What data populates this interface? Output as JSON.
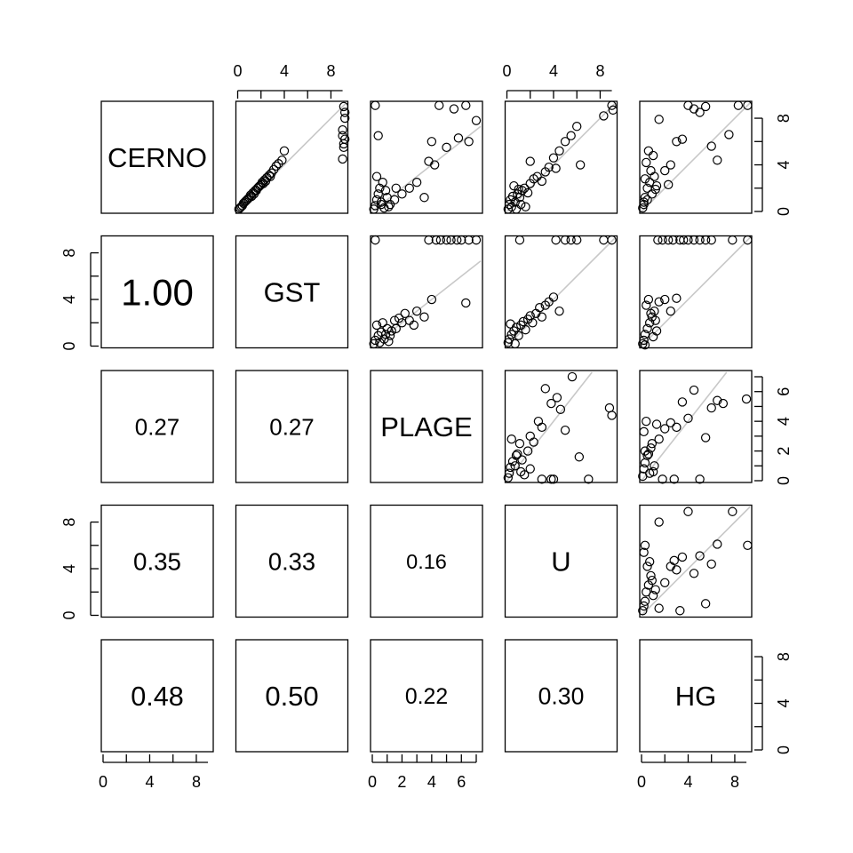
{
  "chart_data": {
    "type": "scatter",
    "layout": "pairs-matrix",
    "variables": [
      "CERNO",
      "GST",
      "PLAGE",
      "U",
      "HG"
    ],
    "ranges": {
      "CERNO": [
        0,
        9.3
      ],
      "GST": [
        0,
        9.3
      ],
      "PLAGE": [
        0,
        7.3
      ],
      "U": [
        0,
        9.3
      ],
      "HG": [
        0,
        9.3
      ]
    },
    "axis_ticks": {
      "CERNO": [
        "0",
        "4",
        "8"
      ],
      "GST": [
        "0",
        "4",
        "8"
      ],
      "PLAGE": [
        "0",
        "2",
        "4",
        "6"
      ],
      "U": [
        "0",
        "4",
        "8"
      ],
      "HG": [
        "0",
        "4",
        "8"
      ]
    },
    "lower_panel_correlations": [
      {
        "row": "GST",
        "col": "CERNO",
        "value": "1.00"
      },
      {
        "row": "PLAGE",
        "col": "CERNO",
        "value": "0.27"
      },
      {
        "row": "PLAGE",
        "col": "GST",
        "value": "0.27"
      },
      {
        "row": "U",
        "col": "CERNO",
        "value": "0.35"
      },
      {
        "row": "U",
        "col": "GST",
        "value": "0.33"
      },
      {
        "row": "U",
        "col": "PLAGE",
        "value": "0.16"
      },
      {
        "row": "HG",
        "col": "CERNO",
        "value": "0.48"
      },
      {
        "row": "HG",
        "col": "GST",
        "value": "0.50"
      },
      {
        "row": "HG",
        "col": "PLAGE",
        "value": "0.22"
      },
      {
        "row": "HG",
        "col": "U",
        "value": "0.30"
      }
    ],
    "upper_panel_points": {
      "CERNO|GST": {
        "x": [
          0.1,
          0.3,
          0.5,
          0.7,
          0.9,
          1.1,
          1.3,
          1.5,
          1.7,
          1.9,
          2.1,
          2.3,
          2.5,
          2.7,
          2.9,
          3.1,
          3.3,
          3.5,
          3.8,
          4.0,
          0.4,
          0.8,
          1.2,
          1.6,
          2.0,
          2.4,
          2.8,
          0.2,
          0.6,
          1.0,
          1.4,
          1.8,
          2.2,
          9.0,
          9.1,
          9.2,
          9.0,
          9.2,
          9.1,
          9.0,
          9.2,
          9.1
        ],
        "y": [
          0.2,
          0.4,
          0.7,
          0.9,
          1.1,
          1.4,
          1.6,
          1.8,
          2.0,
          2.2,
          2.5,
          2.7,
          2.9,
          3.1,
          3.3,
          3.6,
          3.9,
          4.1,
          4.4,
          5.2,
          0.5,
          1.0,
          1.3,
          1.8,
          2.3,
          2.6,
          3.0,
          0.3,
          0.8,
          1.2,
          1.5,
          2.1,
          2.4,
          4.5,
          5.8,
          6.2,
          7.0,
          8.5,
          9.0,
          6.5,
          8.0,
          5.5
        ]
      },
      "CERNO|PLAGE": {
        "x": [
          0.1,
          0.2,
          0.3,
          0.4,
          0.6,
          0.8,
          1.0,
          1.2,
          0.5,
          0.7,
          0.9,
          1.5,
          2.0,
          2.5,
          3.0,
          3.5,
          0.3,
          0.6,
          1.1,
          1.6,
          0.2,
          0.4,
          4.0,
          5.0,
          5.5,
          6.3,
          7.0,
          4.5,
          5.8,
          6.5,
          3.8,
          4.2
        ],
        "y": [
          0.2,
          0.5,
          1.0,
          1.5,
          0.8,
          0.3,
          1.2,
          0.6,
          2.0,
          2.5,
          1.8,
          1.0,
          1.5,
          2.0,
          2.5,
          1.2,
          3.0,
          0.6,
          0.4,
          2.0,
          9.1,
          6.5,
          6.0,
          5.5,
          8.8,
          9.1,
          7.8,
          9.1,
          6.3,
          6.0,
          4.3,
          4.0
        ]
      },
      "CERNO|U": {
        "x": [
          0.1,
          0.2,
          0.3,
          0.5,
          0.7,
          0.9,
          1.1,
          1.3,
          1.5,
          1.8,
          2.0,
          2.3,
          2.6,
          3.0,
          3.3,
          3.6,
          0.4,
          0.8,
          1.2,
          1.6,
          0.6,
          1.0,
          4.0,
          4.5,
          5.0,
          5.5,
          6.0,
          8.3,
          9.0,
          9.1,
          2.0,
          4.2,
          6.3
        ],
        "y": [
          0.2,
          0.6,
          1.0,
          1.3,
          0.8,
          1.5,
          1.2,
          1.8,
          2.0,
          1.6,
          2.4,
          2.8,
          3.0,
          2.6,
          3.4,
          3.8,
          0.4,
          0.2,
          0.6,
          0.4,
          2.2,
          1.9,
          4.6,
          5.2,
          6.0,
          6.5,
          7.3,
          8.2,
          9.1,
          8.7,
          4.3,
          3.7,
          4.0
        ]
      },
      "CERNO|HG": {
        "x": [
          0.1,
          0.2,
          0.3,
          0.5,
          0.7,
          0.9,
          1.1,
          1.3,
          0.4,
          0.6,
          0.8,
          1.0,
          0.2,
          0.5,
          1.5,
          2.0,
          2.5,
          3.0,
          3.5,
          4.0,
          4.5,
          5.0,
          5.5,
          6.0,
          6.5,
          7.5,
          8.3,
          9.1,
          0.3,
          1.2,
          2.3
        ],
        "y": [
          0.3,
          0.8,
          1.2,
          2.0,
          2.5,
          1.5,
          3.0,
          2.2,
          4.2,
          5.2,
          3.5,
          4.8,
          0.6,
          1.0,
          7.9,
          3.5,
          4.0,
          6.0,
          6.2,
          9.1,
          8.8,
          8.5,
          9.0,
          5.6,
          4.4,
          6.6,
          9.1,
          9.1,
          2.8,
          1.9,
          2.3
        ]
      },
      "GST|PLAGE": {
        "x": [
          0.1,
          0.2,
          0.4,
          0.6,
          0.8,
          1.0,
          1.2,
          1.5,
          0.3,
          0.5,
          0.7,
          0.9,
          1.1,
          1.3,
          1.8,
          2.0,
          2.5,
          3.0,
          3.5,
          4.0,
          6.3,
          2.2,
          1.6,
          2.8,
          0.2,
          3.8,
          4.3,
          4.6,
          5.0,
          5.3,
          5.7,
          6.0,
          6.5,
          7.0
        ],
        "y": [
          0.2,
          0.5,
          0.9,
          1.2,
          0.6,
          1.5,
          0.9,
          2.2,
          1.8,
          0.3,
          2.0,
          1.0,
          0.4,
          1.3,
          2.4,
          2.0,
          2.2,
          3.0,
          2.5,
          4.0,
          3.7,
          2.8,
          1.5,
          1.8,
          9.1,
          9.1,
          9.1,
          9.1,
          9.1,
          9.1,
          9.1,
          9.1,
          9.1,
          9.1
        ]
      },
      "GST|U": {
        "x": [
          0.1,
          0.2,
          0.4,
          0.6,
          0.8,
          1.0,
          1.2,
          1.4,
          1.6,
          1.8,
          2.0,
          2.2,
          2.5,
          2.8,
          3.0,
          3.3,
          3.6,
          4.0,
          4.5,
          5.0,
          5.5,
          6.0,
          8.3,
          9.0,
          1.1,
          4.2,
          0.3,
          0.7
        ],
        "y": [
          0.3,
          0.6,
          1.0,
          1.3,
          1.6,
          0.9,
          1.8,
          2.1,
          1.4,
          2.3,
          2.6,
          2.0,
          2.8,
          3.3,
          2.5,
          3.5,
          3.8,
          4.2,
          3.0,
          9.1,
          9.1,
          9.1,
          9.1,
          9.1,
          9.1,
          9.1,
          1.9,
          0.2
        ]
      },
      "GST|HG": {
        "x": [
          0.1,
          0.2,
          0.3,
          0.5,
          0.7,
          0.9,
          1.1,
          1.3,
          0.4,
          0.6,
          0.8,
          1.0,
          1.2,
          1.5,
          2.0,
          2.5,
          3.0,
          1.4,
          1.8,
          2.3,
          2.7,
          3.3,
          3.6,
          4.0,
          4.5,
          5.0,
          5.5,
          6.0,
          7.8,
          9.1,
          0.3
        ],
        "y": [
          0.2,
          0.5,
          1.0,
          1.5,
          2.0,
          2.5,
          3.0,
          1.3,
          3.5,
          4.0,
          2.8,
          0.8,
          2.2,
          3.8,
          4.0,
          3.0,
          4.1,
          9.1,
          9.1,
          9.1,
          9.1,
          9.1,
          9.1,
          9.1,
          9.1,
          9.1,
          9.1,
          9.1,
          9.1,
          9.1,
          0.1
        ]
      },
      "PLAGE|U": {
        "x": [
          0.1,
          0.2,
          0.3,
          0.5,
          0.7,
          0.9,
          1.1,
          1.3,
          1.5,
          1.8,
          2.0,
          2.3,
          2.7,
          3.0,
          3.3,
          3.8,
          4.3,
          4.6,
          5.0,
          5.6,
          6.2,
          7.0,
          8.8,
          9.0,
          2.0,
          3.0,
          3.8,
          4.0,
          0.4,
          1.2,
          0.8
        ],
        "y": [
          0.2,
          0.5,
          0.9,
          1.3,
          1.0,
          1.8,
          2.5,
          1.4,
          0.4,
          2.0,
          3.0,
          2.6,
          4.0,
          3.6,
          6.2,
          5.2,
          5.6,
          4.8,
          3.4,
          7.0,
          1.6,
          0.1,
          4.9,
          4.4,
          0.8,
          0.1,
          0.1,
          0.1,
          2.8,
          0.6,
          1.7
        ]
      },
      "PLAGE|HG": {
        "x": [
          0.1,
          0.2,
          0.3,
          0.5,
          0.7,
          0.9,
          1.1,
          1.3,
          0.4,
          0.6,
          0.8,
          1.0,
          1.5,
          2.0,
          2.5,
          3.0,
          3.5,
          4.0,
          4.5,
          5.0,
          5.5,
          6.0,
          6.5,
          7.0,
          9.0,
          2.8,
          1.8,
          0.2,
          0.3
        ],
        "y": [
          0.3,
          0.8,
          1.2,
          1.7,
          0.5,
          2.5,
          1.0,
          3.8,
          4.0,
          1.8,
          2.2,
          0.6,
          2.8,
          3.5,
          3.9,
          3.6,
          5.3,
          4.2,
          6.1,
          0.1,
          2.9,
          4.9,
          5.4,
          5.2,
          5.5,
          0.1,
          0.1,
          3.3,
          2.0
        ]
      },
      "U|HG": {
        "x": [
          0.1,
          0.2,
          0.3,
          0.4,
          0.6,
          0.8,
          1.0,
          1.2,
          0.5,
          0.7,
          0.9,
          0.3,
          1.5,
          2.0,
          2.5,
          2.8,
          3.0,
          3.5,
          4.0,
          4.5,
          5.0,
          5.5,
          6.0,
          6.5,
          7.8,
          9.1,
          1.5,
          0.2,
          3.3
        ],
        "y": [
          0.4,
          0.8,
          1.2,
          2.0,
          2.6,
          3.4,
          1.7,
          2.2,
          4.2,
          4.6,
          3.0,
          6.0,
          8.0,
          2.8,
          4.2,
          4.7,
          3.9,
          5.0,
          8.9,
          3.6,
          5.1,
          1.0,
          4.4,
          6.1,
          8.9,
          6.0,
          0.6,
          5.4,
          0.4
        ]
      }
    },
    "reference_line": "y = x"
  }
}
